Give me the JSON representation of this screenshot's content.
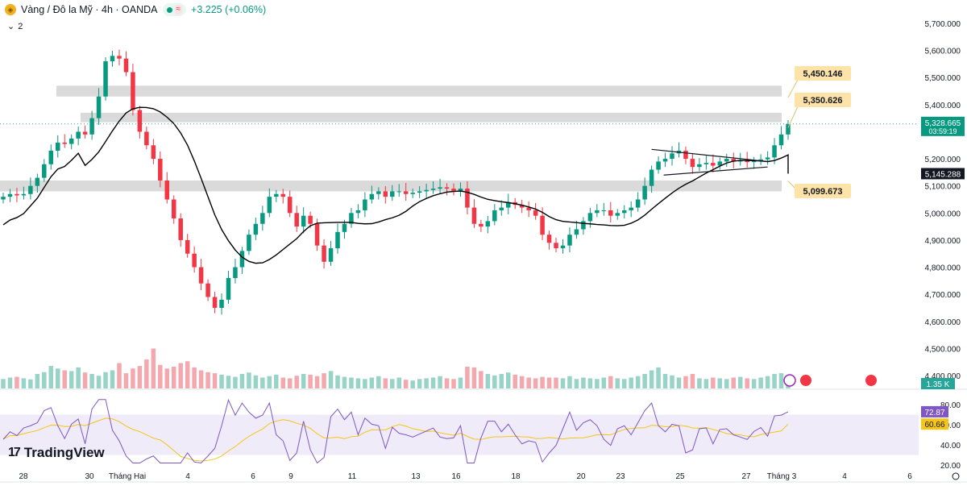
{
  "header": {
    "symbol_title": "Vàng / Đô la Mỹ · 4h · OANDA",
    "change_text": "+3.225 (+0.06%)",
    "collapse_count": "2",
    "wave_glyph": "≈",
    "up_color": "#089981",
    "down_color": "#f23645"
  },
  "logo_text": "TradingView",
  "chart_data": {
    "type": "candlestick",
    "title": "Vàng / Đô la Mỹ · 4h · OANDA",
    "y_ticks": [
      4400,
      4500,
      4600,
      4700,
      4800,
      4900,
      5000,
      5100,
      5200,
      5300,
      5400,
      5500,
      5600,
      5700
    ],
    "y_tick_labels": [
      "4,400.000",
      "4,500.000",
      "4,600.000",
      "4,700.000",
      "4,800.000",
      "4,900.000",
      "5,000.000",
      "5,100.000",
      "5,200.000",
      "5,300.000",
      "5,400.000",
      "5,500.000",
      "5,600.000",
      "5,700.000"
    ],
    "x_labels": [
      "28",
      "30",
      "Tháng Hai",
      "4",
      "6",
      "9",
      "11",
      "13",
      "16",
      "18",
      "20",
      "23",
      "25",
      "27",
      "Tháng 3",
      "4",
      "6"
    ],
    "close_series": [
      5060,
      5070,
      5065,
      5070,
      5100,
      5130,
      5180,
      5230,
      5260,
      5255,
      5275,
      5300,
      5290,
      5350,
      5430,
      5560,
      5580,
      5570,
      5520,
      5380,
      5300,
      5250,
      5200,
      5120,
      5050,
      4980,
      4900,
      4850,
      4800,
      4740,
      4690,
      4650,
      4680,
      4760,
      4800,
      4860,
      4920,
      4960,
      5000,
      5060,
      5070,
      5060,
      5000,
      4950,
      4990,
      4960,
      4880,
      4820,
      4870,
      4930,
      4960,
      5000,
      5010,
      5050,
      5070,
      5080,
      5060,
      5080,
      5080,
      5070,
      5075,
      5080,
      5085,
      5090,
      5095,
      5090,
      5080,
      5090,
      5020,
      4960,
      4950,
      4970,
      5010,
      5020,
      5040,
      5030,
      5020,
      5010,
      4990,
      4920,
      4890,
      4870,
      4880,
      4920,
      4940,
      4970,
      5000,
      5010,
      5010,
      4990,
      5000,
      5010,
      5020,
      5050,
      5100,
      5160,
      5190,
      5200,
      5220,
      5230,
      5200,
      5170,
      5180,
      5185,
      5175,
      5190,
      5200,
      5190,
      5195,
      5188,
      5192,
      5198,
      5205,
      5250,
      5290,
      5328
    ],
    "levels": [
      {
        "label": "5,450.146",
        "value": 5450.146
      },
      {
        "label": "5,350.626",
        "value": 5350.626
      },
      {
        "label": "5,099.673",
        "value": 5099.673
      }
    ],
    "zones": [
      [
        5430,
        5470
      ],
      [
        5335,
        5370
      ],
      [
        5080,
        5120
      ]
    ],
    "current_price": {
      "label": "5,328.665",
      "countdown": "03:59:19",
      "value": 5328.665
    },
    "ma_label": "5,145.288",
    "ma_value": 5145.288,
    "volume_label": "1.35 K",
    "rsi": {
      "ticks": [
        "80.00",
        "60.00",
        "40.00",
        "20.00"
      ],
      "tick_values": [
        80,
        60,
        40,
        20
      ],
      "value_label": "72.87",
      "signal_label": "60.66",
      "value": 72.87,
      "signal": 60.66,
      "band": [
        30,
        70
      ]
    }
  }
}
